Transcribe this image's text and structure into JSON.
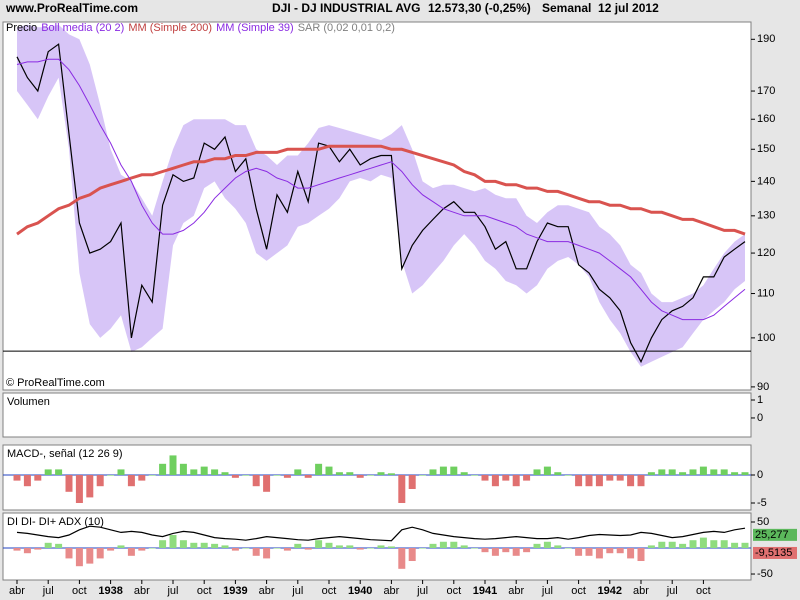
{
  "header": {
    "site": "www.ProRealTime.com",
    "symbol": "DJI - DJ INDUSTRIAL AVG",
    "quote": "12.573,30 (-0,25%)",
    "period": "Semanal  12 jul 2012"
  },
  "chart_data": [
    {
      "type": "line",
      "log_scale": true,
      "watermark": "© ProRealTime.com",
      "categories": [
        "abr",
        null,
        null,
        "jul",
        null,
        null,
        "oct",
        null,
        null,
        "1938",
        null,
        null,
        "abr",
        null,
        null,
        "jul",
        null,
        null,
        "oct",
        null,
        null,
        "1939",
        null,
        null,
        "abr",
        null,
        null,
        "jul",
        null,
        null,
        "oct",
        null,
        null,
        "1940",
        null,
        null,
        "abr",
        null,
        null,
        "jul",
        null,
        null,
        "oct",
        null,
        null,
        "1941",
        null,
        null,
        "abr",
        null,
        null,
        "jul",
        null,
        null,
        "oct",
        null,
        null,
        "1942",
        null,
        null,
        "abr",
        null,
        null,
        "jul",
        null,
        null,
        "oct",
        null,
        null,
        null,
        null
      ],
      "ylim": [
        89.4,
        197.2
      ],
      "yticks": [
        90,
        100,
        110,
        120,
        130,
        140,
        150,
        160,
        170,
        190
      ],
      "hline": 97.2,
      "band": {
        "name": "Boll media (20 2)",
        "color": "#c9b2f4",
        "upper": [
          195,
          196,
          195,
          195,
          196,
          192,
          190,
          180,
          165,
          150,
          142,
          140,
          135,
          130,
          140,
          150,
          158,
          160,
          160,
          160,
          160,
          158,
          158,
          150,
          148,
          145,
          148,
          148,
          152,
          157,
          158,
          157,
          156,
          155,
          154,
          153,
          155,
          158,
          150,
          140,
          138,
          139,
          139,
          138,
          137,
          138,
          136,
          135,
          135,
          130,
          128,
          131,
          133,
          133,
          132,
          131,
          127,
          125,
          122,
          117,
          115,
          110,
          108,
          108,
          109,
          110,
          112,
          116,
          120,
          123,
          125
        ],
        "lower": [
          170,
          165,
          160,
          168,
          175,
          150,
          115,
          103,
          100,
          102,
          105,
          97,
          98,
          100,
          102,
          122,
          128,
          130,
          138,
          140,
          135,
          132,
          128,
          120,
          118,
          120,
          122,
          127,
          128,
          130,
          132,
          135,
          140,
          141,
          140,
          142,
          141,
          118,
          110,
          112,
          115,
          118,
          122,
          125,
          122,
          118,
          116,
          113,
          112,
          110,
          112,
          116,
          118,
          119,
          117,
          114,
          108,
          104,
          101,
          97,
          94,
          95,
          96,
          97,
          98,
          101,
          104,
          106,
          108,
          111,
          113
        ]
      },
      "series": [
        {
          "name": "Precio",
          "color": "#000000",
          "width": 1.2,
          "values": [
            183,
            175,
            170,
            185,
            188,
            155,
            128,
            120,
            121,
            123,
            128,
            100,
            112,
            108,
            133,
            142,
            140,
            141,
            152,
            150,
            154,
            143,
            147,
            132,
            121,
            136,
            131,
            143,
            134,
            152,
            151,
            146,
            150,
            145,
            147,
            148,
            148,
            116,
            122,
            126,
            129,
            132,
            134,
            131,
            131,
            127,
            121,
            123,
            116,
            116,
            123,
            128,
            127,
            127,
            117,
            115,
            111,
            109,
            106,
            99,
            95,
            100,
            104,
            106,
            107,
            109,
            114,
            114,
            119,
            121,
            123
          ]
        },
        {
          "name": "MM (Simple 200)",
          "color": "#d9534f",
          "width": 3,
          "values": [
            125,
            127,
            128,
            130,
            132,
            133,
            135,
            136,
            138,
            139,
            140,
            141,
            142,
            142,
            143,
            144,
            145,
            146,
            146,
            147,
            147,
            148,
            148,
            149,
            149,
            149,
            150,
            150,
            150,
            150,
            151,
            151,
            151,
            151,
            151,
            151,
            150,
            150,
            149,
            148,
            147,
            146,
            145,
            143,
            142,
            140,
            140,
            139,
            139,
            138,
            138,
            137,
            137,
            136,
            135,
            134,
            134,
            133,
            133,
            132,
            132,
            131,
            131,
            130,
            129,
            129,
            128,
            127,
            126,
            126,
            125
          ]
        },
        {
          "name": "MM (Simple 39)",
          "color": "#8a2be2",
          "width": 1,
          "values": [
            180,
            181,
            181,
            182,
            182,
            178,
            172,
            165,
            158,
            152,
            145,
            140,
            133,
            128,
            125,
            125,
            126,
            128,
            131,
            135,
            138,
            141,
            143,
            144,
            143,
            141,
            140,
            138,
            138,
            139,
            140,
            141,
            142,
            143,
            144,
            145,
            146,
            143,
            139,
            136,
            134,
            132,
            131,
            130,
            130,
            130,
            129,
            128,
            127,
            125,
            124,
            123,
            123,
            123,
            122,
            121,
            120,
            118,
            116,
            114,
            111,
            108,
            106,
            105,
            104,
            104,
            104,
            105,
            107,
            109,
            111
          ]
        }
      ],
      "legend_extra": "SAR (0,02 0,01 0,2)"
    },
    {
      "type": "bar",
      "title": "Volumen",
      "ylim": [
        -1.06,
        1.39
      ],
      "yticks": [
        1,
        0
      ]
    },
    {
      "type": "bar",
      "title": "MACD-, señal (12 26 9)",
      "ylim": [
        -6.25,
        5.36
      ],
      "yticks": [
        0,
        -5
      ],
      "up_color": "#6fcf5f",
      "down_color": "#e07070",
      "values": [
        -1,
        -2,
        -1,
        1,
        1,
        -3,
        -5,
        -4,
        -2,
        0,
        1,
        -2,
        -1,
        0,
        2,
        3.5,
        2,
        1,
        1.5,
        1,
        0.5,
        -0.5,
        0,
        -2,
        -3,
        0,
        -0.5,
        1,
        -0.5,
        2,
        1.5,
        0.5,
        0.5,
        -0.5,
        0,
        0.5,
        0.3,
        -5,
        -2.5,
        0,
        1,
        1.5,
        1.5,
        0.5,
        0,
        -1,
        -2,
        -1,
        -2,
        -1,
        1,
        1.5,
        0.5,
        0,
        -2,
        -2,
        -2,
        -1,
        -1,
        -2,
        -2,
        0.5,
        1,
        1,
        0.5,
        1,
        1.5,
        1,
        1,
        0.5,
        0.5
      ]
    },
    {
      "type": "bar",
      "title": "DI DI- DI+ ADX (10)",
      "ylim": [
        -61.5,
        67.3
      ],
      "yticks": [
        50,
        -50
      ],
      "up_color": "#8fdc7f",
      "down_color": "#e88a8a",
      "values": [
        -5,
        -10,
        -3,
        10,
        8,
        -20,
        -35,
        -30,
        -20,
        -5,
        5,
        -15,
        -5,
        0,
        15,
        25,
        15,
        10,
        10,
        8,
        5,
        -5,
        0,
        -15,
        -20,
        0,
        -5,
        8,
        -3,
        15,
        10,
        5,
        5,
        -3,
        0,
        5,
        3,
        -40,
        -25,
        0,
        8,
        12,
        12,
        5,
        0,
        -8,
        -15,
        -8,
        -15,
        -8,
        8,
        12,
        5,
        0,
        -15,
        -15,
        -20,
        -10,
        -10,
        -20,
        -25,
        5,
        12,
        12,
        8,
        15,
        20,
        15,
        15,
        10,
        10
      ],
      "series": [
        {
          "name": "ADX",
          "color": "#000000",
          "values": [
            30,
            28,
            25,
            22,
            20,
            25,
            35,
            42,
            40,
            35,
            30,
            32,
            30,
            25,
            22,
            28,
            32,
            30,
            25,
            20,
            18,
            17,
            15,
            18,
            22,
            20,
            18,
            16,
            15,
            18,
            20,
            22,
            20,
            18,
            16,
            15,
            14,
            35,
            40,
            35,
            28,
            25,
            22,
            20,
            18,
            17,
            18,
            20,
            22,
            20,
            18,
            18,
            20,
            17,
            20,
            24,
            26,
            25,
            24,
            25,
            30,
            28,
            24,
            20,
            22,
            26,
            30,
            32,
            30,
            35,
            38
          ]
        }
      ],
      "current": [
        {
          "value": 25.277,
          "label": "25,277",
          "color": "#5cb85c"
        },
        {
          "value": -9.5135,
          "label": "-9,5135",
          "color": "#e07070"
        }
      ]
    }
  ]
}
